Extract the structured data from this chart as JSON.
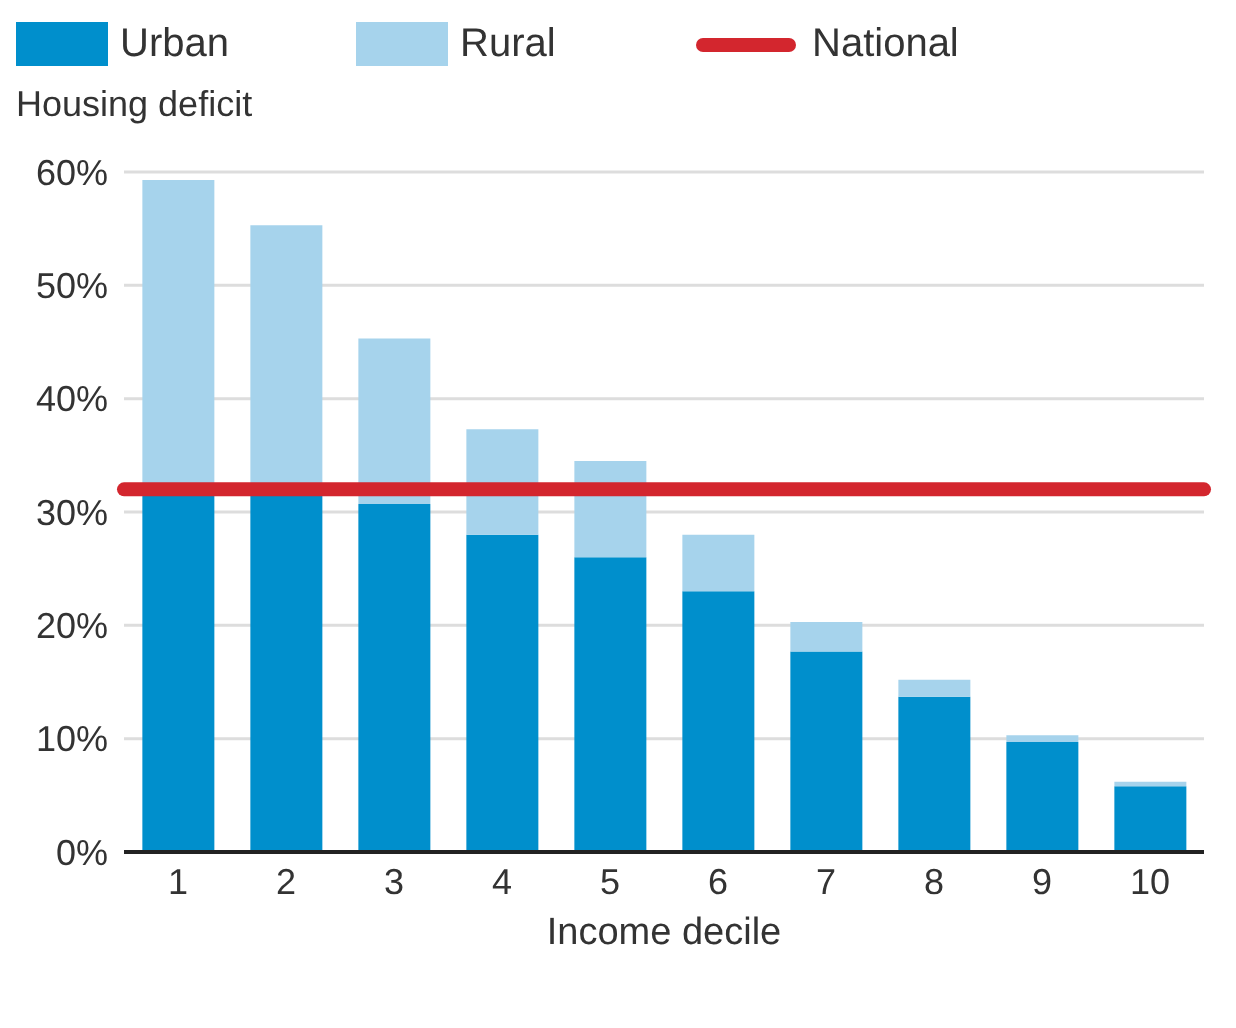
{
  "chart_data": {
    "type": "bar",
    "stacked": true,
    "ylabel": "Housing deficit",
    "xlabel": "Income decile",
    "categories": [
      "1",
      "2",
      "3",
      "4",
      "5",
      "6",
      "7",
      "8",
      "9",
      "10"
    ],
    "series": [
      {
        "name": "Urban",
        "color": "#008fcc",
        "values": [
          31.5,
          31.5,
          30.7,
          28.0,
          26.0,
          23.0,
          17.7,
          13.7,
          9.7,
          5.8
        ]
      },
      {
        "name": "Rural",
        "color": "#a6d3ec",
        "values": [
          27.8,
          23.8,
          14.6,
          9.3,
          8.5,
          5.0,
          2.6,
          1.5,
          0.6,
          0.4
        ]
      }
    ],
    "ref_lines": [
      {
        "axis": "y",
        "value": 32,
        "label": "National",
        "color": "#d3262e"
      }
    ],
    "ylim": [
      0,
      60
    ],
    "yticks": [
      {
        "value": 0,
        "label": "0%"
      },
      {
        "value": 10,
        "label": "10%"
      },
      {
        "value": 20,
        "label": "20%"
      },
      {
        "value": 30,
        "label": "30%"
      },
      {
        "value": 40,
        "label": "40%"
      },
      {
        "value": 50,
        "label": "50%"
      },
      {
        "value": 60,
        "label": "60%"
      }
    ],
    "grid": "y",
    "legend": "top left"
  }
}
